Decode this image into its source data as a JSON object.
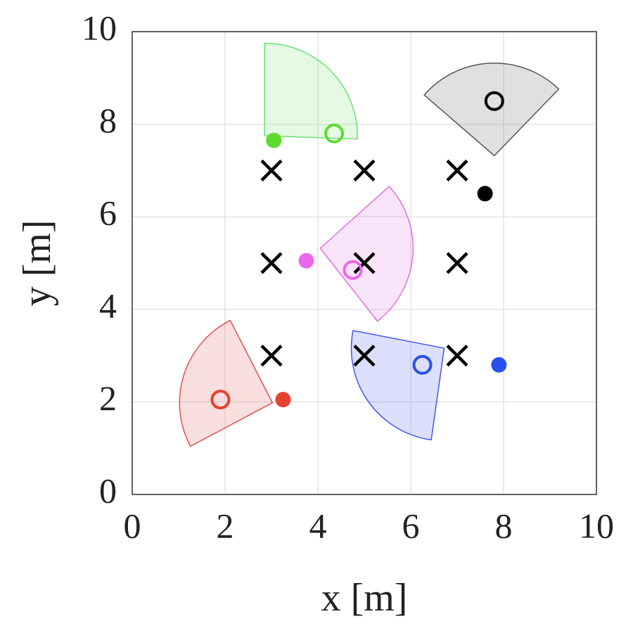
{
  "chart_data": {
    "type": "scatter",
    "xlabel": "x [m]",
    "ylabel": "y [m]",
    "xlim": [
      0,
      10
    ],
    "ylim": [
      0,
      10
    ],
    "xticks": [
      0,
      2,
      4,
      6,
      8,
      10
    ],
    "yticks": [
      0,
      2,
      4,
      6,
      8,
      10
    ],
    "grid": true,
    "targets": {
      "color": "#000000",
      "x": [
        3,
        5,
        7,
        3,
        5,
        7,
        3,
        5,
        7
      ],
      "y": [
        7,
        7,
        7,
        5,
        5,
        5,
        3,
        3,
        3
      ]
    },
    "agents": [
      {
        "color": "#5ddc2e",
        "sector_color": "#6ddf6d",
        "x": 3.05,
        "y": 7.65,
        "sensor_x": 4.35,
        "sensor_y": 7.8,
        "apex_x": 2.85,
        "apex_y": 7.75,
        "radius": 2,
        "angle_start": -2,
        "angle_end": 90
      },
      {
        "color": "#000000",
        "sector_color": "#555555",
        "x": 7.6,
        "y": 6.5,
        "sensor_x": 7.8,
        "sensor_y": 8.5,
        "apex_x": 7.8,
        "apex_y": 7.32,
        "radius": 2,
        "angle_start": 46,
        "angle_end": 139
      },
      {
        "color": "#ec66ec",
        "sector_color": "#e070e0",
        "x": 3.75,
        "y": 5.05,
        "sensor_x": 4.75,
        "sensor_y": 4.85,
        "apex_x": 4.05,
        "apex_y": 5.32,
        "radius": 2,
        "angle_start": -52,
        "angle_end": 42
      },
      {
        "color": "#e84030",
        "sector_color": "#e05050",
        "x": 3.25,
        "y": 2.05,
        "sensor_x": 1.9,
        "sensor_y": 2.05,
        "apex_x": 3.02,
        "apex_y": 1.98,
        "radius": 2,
        "angle_start": 117,
        "angle_end": 208
      },
      {
        "color": "#2850ee",
        "sector_color": "#4455ee",
        "x": 7.9,
        "y": 2.8,
        "sensor_x": 6.25,
        "sensor_y": 2.8,
        "apex_x": 6.72,
        "apex_y": 3.16,
        "radius": 2,
        "angle_start": 169,
        "angle_end": 262
      }
    ]
  }
}
